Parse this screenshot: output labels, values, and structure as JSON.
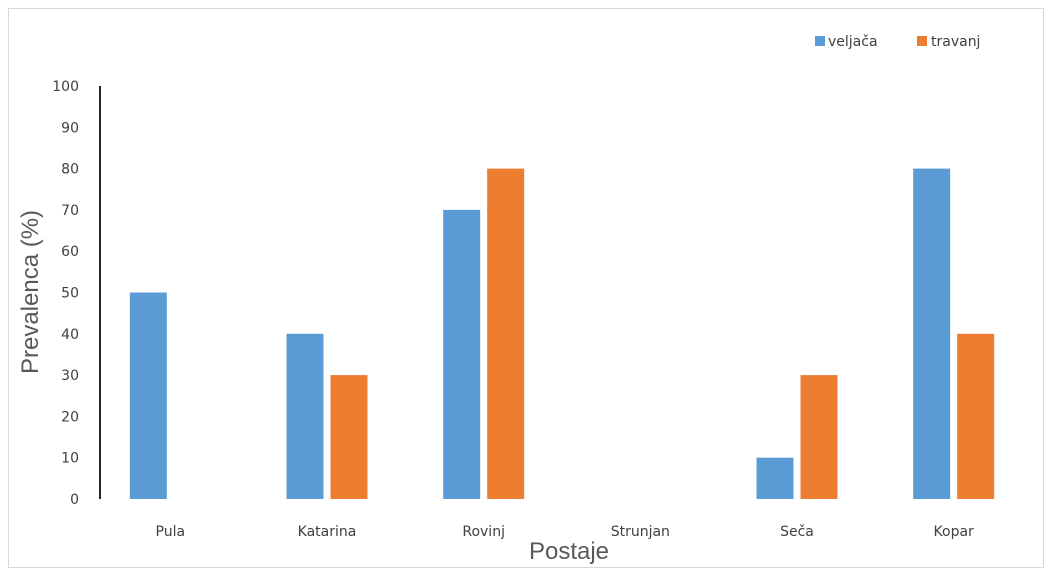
{
  "chart_data": {
    "type": "bar",
    "title": "",
    "xlabel": "Postaje",
    "ylabel": "Prevalenca (%)",
    "ylim": [
      0,
      100
    ],
    "yticks": [
      0,
      10,
      20,
      30,
      40,
      50,
      60,
      70,
      80,
      90,
      100
    ],
    "categories": [
      "Pula",
      "Katarina",
      "Rovinj",
      "Strunjan",
      "Seča",
      "Kopar"
    ],
    "series": [
      {
        "name": "veljača",
        "color": "#5B9BD5",
        "values": [
          50,
          40,
          70,
          0,
          10,
          80
        ]
      },
      {
        "name": "travanj",
        "color": "#ED7D31",
        "values": [
          0,
          30,
          80,
          0,
          30,
          40
        ]
      }
    ],
    "grid": false,
    "legend": "top-right"
  }
}
